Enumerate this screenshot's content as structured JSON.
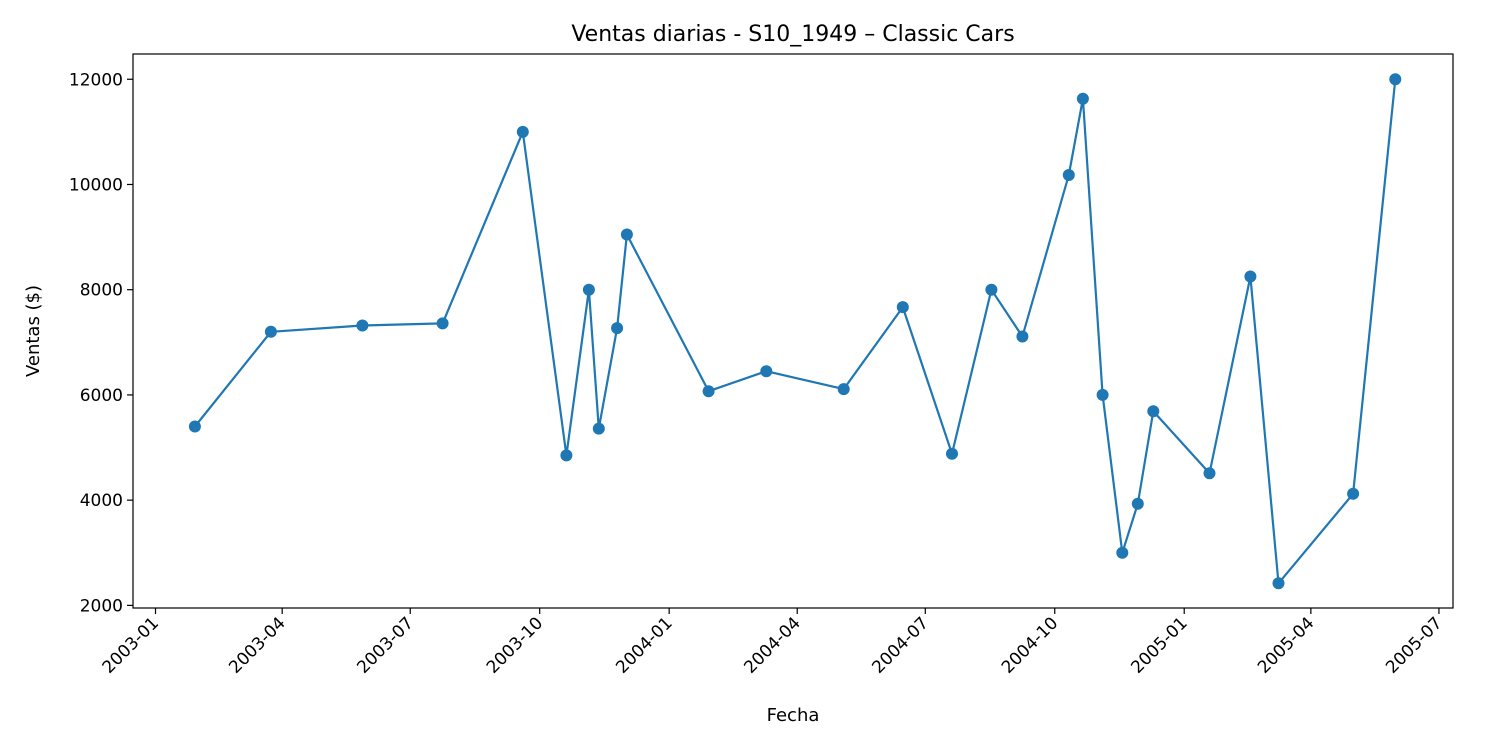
{
  "chart_data": {
    "type": "line",
    "title": "Ventas diarias - S10_1949 – Classic Cars",
    "xlabel": "Fecha",
    "ylabel": "Ventas ($)",
    "x_axis_type": "date",
    "xlim": [
      "2002-12-16",
      "2005-07-11"
    ],
    "ylim": [
      1950,
      12480
    ],
    "x_ticks": [
      "2003-01",
      "2003-04",
      "2003-07",
      "2003-10",
      "2004-01",
      "2004-04",
      "2004-07",
      "2004-10",
      "2005-01",
      "2005-04",
      "2005-07"
    ],
    "x_tick_dates": [
      "2003-01-01",
      "2003-04-01",
      "2003-07-01",
      "2003-10-01",
      "2004-01-01",
      "2004-04-01",
      "2004-07-01",
      "2004-10-01",
      "2005-01-01",
      "2005-04-01",
      "2005-07-01"
    ],
    "y_ticks": [
      2000,
      4000,
      6000,
      8000,
      10000,
      12000
    ],
    "grid": false,
    "color": "#1f77b4",
    "series": [
      {
        "points": [
          {
            "x": "2003-01-29",
            "y": 5400
          },
          {
            "x": "2003-03-24",
            "y": 7200
          },
          {
            "x": "2003-05-28",
            "y": 7320
          },
          {
            "x": "2003-07-24",
            "y": 7360
          },
          {
            "x": "2003-09-19",
            "y": 11000
          },
          {
            "x": "2003-10-20",
            "y": 4850
          },
          {
            "x": "2003-11-05",
            "y": 8000
          },
          {
            "x": "2003-11-12",
            "y": 5360
          },
          {
            "x": "2003-11-25",
            "y": 7270
          },
          {
            "x": "2003-12-02",
            "y": 9050
          },
          {
            "x": "2004-01-29",
            "y": 6070
          },
          {
            "x": "2004-03-10",
            "y": 6450
          },
          {
            "x": "2004-05-04",
            "y": 6110
          },
          {
            "x": "2004-06-15",
            "y": 7670
          },
          {
            "x": "2004-07-20",
            "y": 4880
          },
          {
            "x": "2004-08-17",
            "y": 8000
          },
          {
            "x": "2004-09-08",
            "y": 7110
          },
          {
            "x": "2004-10-11",
            "y": 10180
          },
          {
            "x": "2004-10-21",
            "y": 11630
          },
          {
            "x": "2004-11-04",
            "y": 6000
          },
          {
            "x": "2004-11-18",
            "y": 3000
          },
          {
            "x": "2004-11-29",
            "y": 3930
          },
          {
            "x": "2004-12-10",
            "y": 5690
          },
          {
            "x": "2005-01-19",
            "y": 4510
          },
          {
            "x": "2005-02-17",
            "y": 8250
          },
          {
            "x": "2005-03-09",
            "y": 2420
          },
          {
            "x": "2005-05-01",
            "y": 4120
          },
          {
            "x": "2005-05-31",
            "y": 12000
          }
        ]
      }
    ]
  }
}
